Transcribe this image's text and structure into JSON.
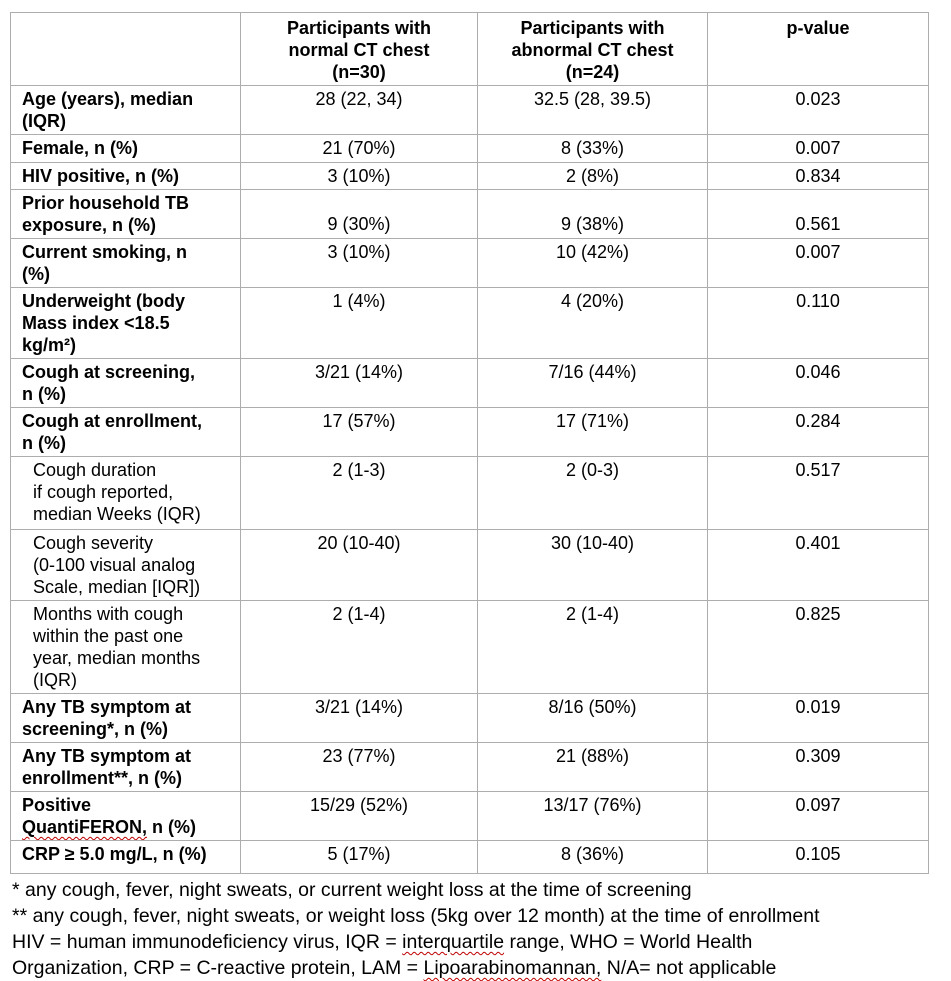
{
  "colors": {
    "background": "#ffffff",
    "text": "#000000",
    "table_border": "#adadad",
    "spellcheck_underline": "#c00000"
  },
  "table": {
    "header": {
      "col0": "",
      "col1": "Participants with\nnormal CT chest\n(n=30)",
      "col2": "Participants with\nabnormal CT chest\n(n=24)",
      "col3": "p-value"
    },
    "rows": [
      {
        "label": "Age (years), median\n(IQR)",
        "sub": false,
        "normal": "28 (22, 34)",
        "abnormal": "32.5 (28, 39.5)",
        "p": "0.023"
      },
      {
        "label": "Female, n (%)",
        "sub": false,
        "normal": "21 (70%)",
        "abnormal": "8 (33%)",
        "p": "0.007"
      },
      {
        "label": "HIV positive, n (%)",
        "sub": false,
        "normal": "3 (10%)",
        "abnormal": "2 (8%)",
        "p": "0.834"
      },
      {
        "label": "Prior household TB\nexposure, n (%)",
        "sub": false,
        "normal": "9 (30%)",
        "abnormal": "9 (38%)",
        "p": "0.561"
      },
      {
        "label": "Current smoking, n\n(%)",
        "sub": false,
        "normal": "3 (10%)",
        "abnormal": "10 (42%)",
        "p": "0.007"
      },
      {
        "label": "Underweight (body\nMass index <18.5\nkg/m²)",
        "sub": false,
        "normal": "1 (4%)",
        "abnormal": "4 (20%)",
        "p": "0.110"
      },
      {
        "label": "Cough at screening,\nn (%)",
        "sub": false,
        "normal": "3/21 (14%)",
        "abnormal": "7/16 (44%)",
        "p": "0.046"
      },
      {
        "label": "Cough at enrollment,\nn (%)",
        "sub": false,
        "normal": "17 (57%)",
        "abnormal": "17 (71%)",
        "p": "0.284"
      },
      {
        "label": "Cough duration\nif cough reported,\nmedian Weeks (IQR)",
        "sub": true,
        "normal": "2 (1-3)",
        "abnormal": "2 (0-3)",
        "p": "0.517"
      },
      {
        "label": "Cough severity\n(0-100 visual analog\nScale, median [IQR])",
        "sub": true,
        "normal": "20 (10-40)",
        "abnormal": "30 (10-40)",
        "p": "0.401"
      },
      {
        "label": "Months with cough\nwithin the past one\nyear, median months\n(IQR)",
        "sub": true,
        "normal": "2 (1-4)",
        "abnormal": "2 (1-4)",
        "p": "0.825"
      },
      {
        "label": "Any TB symptom at\nscreening*, n (%)",
        "sub": false,
        "normal": "3/21 (14%)",
        "abnormal": "8/16 (50%)",
        "p": "0.019"
      },
      {
        "label": "Any TB symptom at\nenrollment**, n (%)",
        "sub": false,
        "normal": "23 (77%)",
        "abnormal": "21 (88%)",
        "p": "0.309"
      },
      {
        "label_segments": [
          {
            "t": "Positive\n"
          },
          {
            "t": "QuantiFERON,",
            "misspelled": true
          },
          {
            "t": " n (%)"
          }
        ],
        "sub": false,
        "normal": "15/29 (52%)",
        "abnormal": "13/17 (76%)",
        "p": "0.097"
      },
      {
        "label": "CRP ≥ 5.0 mg/L, n (%)",
        "sub": false,
        "normal": "5 (17%)",
        "abnormal": "8 (36%)",
        "p": "0.105"
      }
    ]
  },
  "footnotes": {
    "lines": [
      {
        "segments": [
          {
            "t": "* any cough, fever, night sweats, or current weight loss at the time of screening"
          }
        ]
      },
      {
        "segments": [
          {
            "t": "** any cough, fever, night sweats, or weight loss (5kg over 12 month) at the time of enrollment"
          }
        ]
      },
      {
        "segments": [
          {
            "t": "HIV = human immunodeficiency virus, IQR = "
          },
          {
            "t": "interquartile",
            "misspelled": true
          },
          {
            "t": " range, WHO = World Health"
          }
        ]
      },
      {
        "segments": [
          {
            "t": "Organization, CRP = C-reactive protein, LAM = "
          },
          {
            "t": "Lipoarabinomannan,",
            "misspelled": true
          },
          {
            "t": " N/A= not applicable"
          }
        ]
      }
    ]
  }
}
